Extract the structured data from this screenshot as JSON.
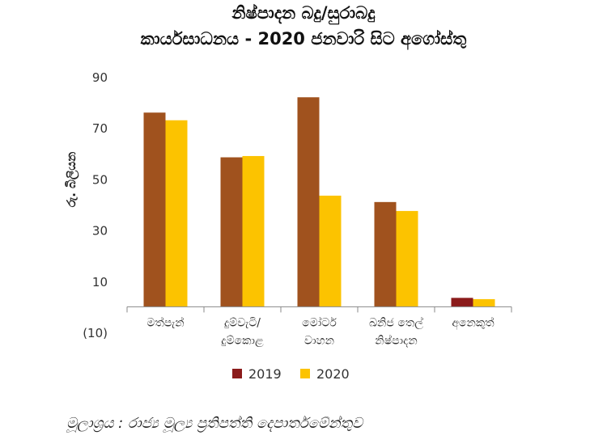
{
  "chart_data": {
    "type": "bar",
    "title": "නිෂ්පාදන බදු/සුරාබදු",
    "subtitle": "කාර්යසාධනය - 2020 ජනවාරි සිට අගෝස්තු",
    "ylabel": "රු. බිලියන",
    "xlabel": "",
    "ylim": [
      -10,
      90
    ],
    "yticks": [
      90,
      70,
      50,
      30,
      10,
      -10
    ],
    "ytick_labels": [
      "90",
      "70",
      "50",
      "30",
      "10",
      "(10)"
    ],
    "categories": [
      [
        "මත්පැන්"
      ],
      [
        "දුම්වැටි/",
        "දුම්කොළ"
      ],
      [
        "මෝටර්",
        "වාහන"
      ],
      [
        "ඛනිජ තෙල්",
        "නිෂ්පාදන"
      ],
      [
        "අනෙකුත්"
      ]
    ],
    "series": [
      {
        "name": "2019",
        "color": "#a0521e",
        "values": [
          76,
          58.5,
          82,
          41,
          3.5
        ]
      },
      {
        "name": "2020",
        "color": "#fcc300",
        "values": [
          73,
          59,
          43.5,
          37.5,
          3
        ]
      }
    ],
    "legend_swatch_colors": [
      "#8b1b1b",
      "#fcc300"
    ],
    "legend_position": "bottom-center",
    "grid": false
  },
  "source_note": "මූලාශ්‍රය : රාජ්‍ය මූල්‍ය ප්‍රතිපත්ති දෙපාර්තමේන්තුව"
}
